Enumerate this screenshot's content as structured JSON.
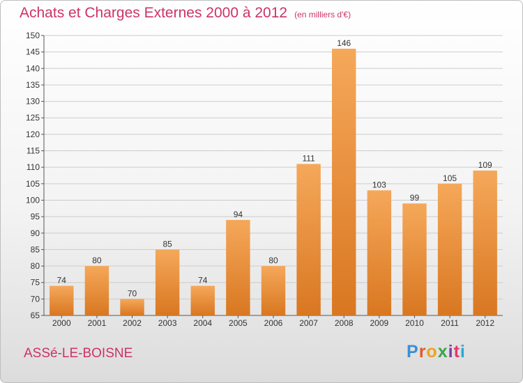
{
  "title": "Achats et Charges Externes 2000 à 2012",
  "unit": "(en milliers d'€)",
  "commune": "ASSé-LE-BOISNE",
  "logo": {
    "letters": [
      "P",
      "r",
      "o",
      "x",
      "i",
      "t",
      "i"
    ],
    "colors": [
      "#3a8fd6",
      "#e05a2b",
      "#f0a31d",
      "#3aa64a",
      "#7a3fa0",
      "#e03a6e",
      "#29a8d6"
    ]
  },
  "colors": {
    "bar_light": "#f5a85a",
    "bar_dark": "#d97721",
    "grid": "#cccccc"
  },
  "chart_data": {
    "type": "bar",
    "categories": [
      "2000",
      "2001",
      "2002",
      "2003",
      "2004",
      "2005",
      "2006",
      "2007",
      "2008",
      "2009",
      "2010",
      "2011",
      "2012"
    ],
    "values": [
      74,
      80,
      70,
      85,
      74,
      94,
      80,
      111,
      146,
      103,
      99,
      105,
      109
    ],
    "ylim": [
      65,
      150
    ],
    "yticks": [
      65,
      70,
      75,
      80,
      85,
      90,
      95,
      100,
      105,
      110,
      115,
      120,
      125,
      130,
      135,
      140,
      145,
      150
    ],
    "grid": true,
    "legend": "none"
  }
}
